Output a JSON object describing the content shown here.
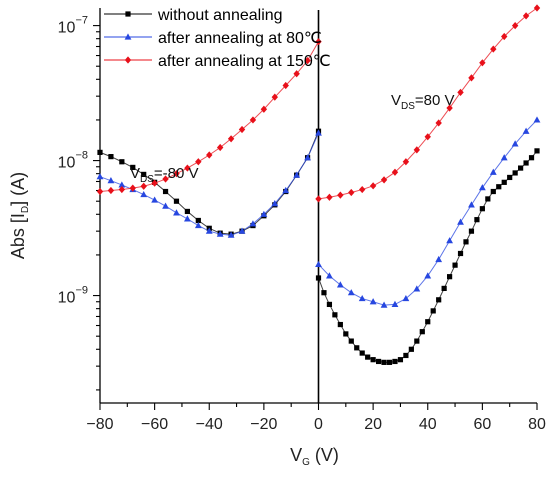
{
  "chart_data": {
    "type": "line",
    "title": "",
    "xlabel": {
      "main": "V",
      "sub": "G",
      "suffix": " (V)"
    },
    "ylabel": {
      "prefix": "Abs [I",
      "sub": "D",
      "suffix": "] (A)"
    },
    "x_scale": "linear",
    "y_scale": "log",
    "xlim": [
      -80,
      80
    ],
    "ylim": [
      1.6e-10,
      1.35e-07
    ],
    "x_ticks": [
      -80,
      -60,
      -40,
      -20,
      0,
      20,
      40,
      60,
      80
    ],
    "x_tick_labels": [
      "−80",
      "−60",
      "−40",
      "−20",
      "0",
      "20",
      "40",
      "60",
      "80"
    ],
    "y_ticks": [
      {
        "value": 1e-09,
        "base": "10",
        "exp": "−9"
      },
      {
        "value": 1e-08,
        "base": "10",
        "exp": "−8"
      },
      {
        "value": 1e-07,
        "base": "10",
        "exp": "−7"
      }
    ],
    "legend_position": "top-left",
    "annotations": [
      {
        "prefix": "V",
        "sub": "DS",
        "suffix": "=-80 V"
      },
      {
        "prefix": "V",
        "sub": "DS",
        "suffix": "=80 V"
      }
    ],
    "series": [
      {
        "name": "without annealing",
        "color": "#000000",
        "marker": "square",
        "segments": [
          {
            "x": [
              -80,
              -76,
              -72,
              -68,
              -64,
              -60,
              -56,
              -52,
              -48,
              -44,
              -40,
              -36,
              -32,
              -28,
              -24,
              -20,
              -16,
              -12,
              -8,
              -4,
              0
            ],
            "y": [
              1.15e-08,
              1.07e-08,
              9.8e-09,
              8.9e-09,
              7.9e-09,
              6.9e-09,
              5.9e-09,
              5e-09,
              4.2e-09,
              3.6e-09,
              3.15e-09,
              2.9e-09,
              2.85e-09,
              3e-09,
              3.3e-09,
              3.9e-09,
              4.7e-09,
              5.9e-09,
              7.8e-09,
              1.05e-08,
              1.65e-08
            ]
          },
          {
            "x": [
              0,
              2,
              4,
              6,
              8,
              10,
              12,
              14,
              16,
              18,
              20,
              22,
              24,
              26,
              28,
              30,
              32,
              34,
              36,
              38,
              40,
              42,
              44,
              46,
              48,
              50,
              52,
              54,
              56,
              58,
              60,
              62,
              64,
              66,
              68,
              70,
              72,
              74,
              76,
              78,
              80
            ],
            "y": [
              1.35e-09,
              1.05e-09,
              8.6e-10,
              7.2e-10,
              6.1e-10,
              5.2e-10,
              4.6e-10,
              4.1e-10,
              3.75e-10,
              3.5e-10,
              3.35e-10,
              3.25e-10,
              3.2e-10,
              3.2e-10,
              3.25e-10,
              3.35e-10,
              3.6e-10,
              4e-10,
              4.6e-10,
              5.4e-10,
              6.4e-10,
              7.7e-10,
              9.3e-10,
              1.13e-09,
              1.38e-09,
              1.68e-09,
              2.05e-09,
              2.5e-09,
              3e-09,
              3.65e-09,
              4.4e-09,
              5.2e-09,
              5.9e-09,
              6.4e-09,
              6.9e-09,
              7.5e-09,
              8.1e-09,
              8.8e-09,
              9.6e-09,
              1.05e-08,
              1.18e-08
            ]
          }
        ]
      },
      {
        "name": "after annealing at 80℃",
        "color": "#2747e0",
        "marker": "triangle",
        "segments": [
          {
            "x": [
              -80,
              -76,
              -72,
              -68,
              -64,
              -60,
              -56,
              -52,
              -48,
              -44,
              -40,
              -36,
              -32,
              -28,
              -24,
              -20,
              -16,
              -12,
              -8,
              -4,
              0
            ],
            "y": [
              7.6e-09,
              7.1e-09,
              6.6e-09,
              6.1e-09,
              5.6e-09,
              5.1e-09,
              4.6e-09,
              4.1e-09,
              3.7e-09,
              3.3e-09,
              3e-09,
              2.85e-09,
              2.8e-09,
              3e-09,
              3.4e-09,
              4e-09,
              4.8e-09,
              6e-09,
              7.8e-09,
              1.05e-08,
              1.6e-08
            ]
          },
          {
            "x": [
              0,
              4,
              8,
              12,
              16,
              20,
              24,
              28,
              32,
              36,
              40,
              44,
              48,
              52,
              56,
              60,
              64,
              68,
              72,
              76,
              80
            ],
            "y": [
              1.7e-09,
              1.4e-09,
              1.2e-09,
              1.05e-09,
              9.5e-10,
              9e-10,
              8.5e-10,
              8.6e-10,
              9.5e-10,
              1.12e-09,
              1.4e-09,
              1.85e-09,
              2.55e-09,
              3.5e-09,
              4.7e-09,
              6.3e-09,
              8.2e-09,
              1.05e-08,
              1.33e-08,
              1.65e-08,
              2e-08
            ]
          }
        ]
      },
      {
        "name": "after annealing at 150℃",
        "color": "#e8101a",
        "marker": "diamond",
        "segments": [
          {
            "x": [
              -80,
              -76,
              -72,
              -68,
              -64,
              -60,
              -56,
              -52,
              -48,
              -44,
              -40,
              -36,
              -32,
              -28,
              -24,
              -20,
              -16,
              -12,
              -8,
              -4,
              0
            ],
            "y": [
              5.9e-09,
              6e-09,
              6.1e-09,
              6.25e-09,
              6.45e-09,
              6.8e-09,
              7.3e-09,
              8e-09,
              8.8e-09,
              9.8e-09,
              1.1e-08,
              1.25e-08,
              1.45e-08,
              1.7e-08,
              2e-08,
              2.4e-08,
              2.95e-08,
              3.6e-08,
              4.4e-08,
              5.5e-08,
              7.6e-08
            ]
          },
          {
            "x": [
              0,
              4,
              8,
              12,
              16,
              20,
              24,
              28,
              32,
              36,
              40,
              44,
              48,
              52,
              56,
              60,
              64,
              68,
              72,
              76,
              80
            ],
            "y": [
              5.2e-09,
              5.35e-09,
              5.55e-09,
              5.8e-09,
              6.1e-09,
              6.5e-09,
              7.2e-09,
              8.2e-09,
              9.8e-09,
              1.2e-08,
              1.5e-08,
              1.9e-08,
              2.45e-08,
              3.2e-08,
              4.1e-08,
              5.3e-08,
              6.7e-08,
              8.3e-08,
              1e-07,
              1.18e-07,
              1.35e-07
            ]
          }
        ]
      }
    ]
  }
}
